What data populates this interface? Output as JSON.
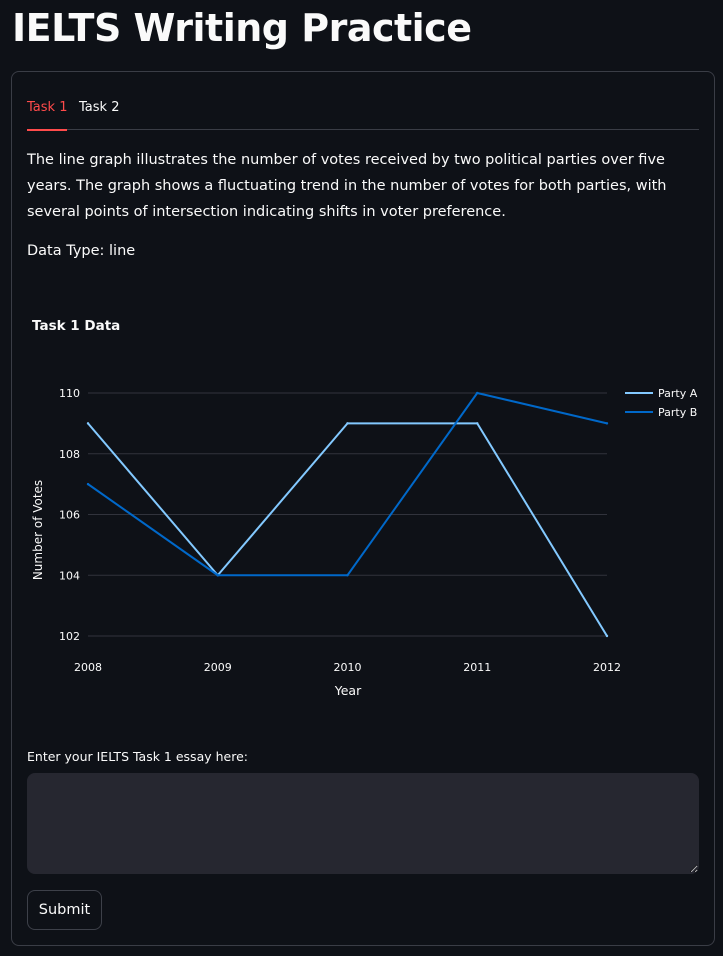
{
  "page": {
    "title": "IELTS Writing Practice"
  },
  "tabs": [
    {
      "label": "Task 1",
      "active": true
    },
    {
      "label": "Task 2",
      "active": false
    }
  ],
  "task1": {
    "description": "The line graph illustrates the number of votes received by two political parties over five years. The graph shows a fluctuating trend in the number of votes for both parties, with several points of intersection indicating shifts in voter preference.",
    "data_type_text": "Data Type: line",
    "essay_label": "Enter your IELTS Task 1 essay here:",
    "essay_value": "",
    "submit_label": "Submit"
  },
  "colors": {
    "background": "#0e1117",
    "accent": "#ff4b4b",
    "party_a": "#83c9ff",
    "party_b": "#0068c9"
  },
  "chart_data": {
    "type": "line",
    "title": "Task 1 Data",
    "xlabel": "Year",
    "ylabel": "Number of Votes",
    "x": [
      "2008",
      "2009",
      "2010",
      "2011",
      "2012"
    ],
    "series": [
      {
        "name": "Party A",
        "values": [
          109,
          104,
          109,
          109,
          102
        ]
      },
      {
        "name": "Party B",
        "values": [
          107,
          104,
          104,
          110,
          109
        ]
      }
    ],
    "ylim": [
      102,
      110
    ],
    "yticks": [
      102,
      104,
      106,
      108,
      110
    ],
    "grid": true,
    "legend": "top-right"
  }
}
